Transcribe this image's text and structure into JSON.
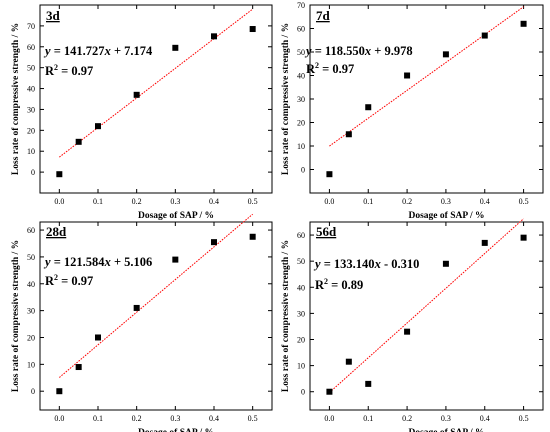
{
  "figure": {
    "colors": {
      "points": "#000000",
      "fit_line": "#ff0000",
      "axes": "#000000"
    }
  },
  "chart_data": [
    {
      "type": "scatter",
      "title": "3d",
      "xlabel": "Dosage of SAP / %",
      "ylabel": "Loss rate of compressive strength / %",
      "xlim": [
        -0.05,
        0.55
      ],
      "ylim": [
        -10,
        80
      ],
      "x_ticks": [
        "0.0",
        "0.1",
        "0.2",
        "0.3",
        "0.4",
        "0.5"
      ],
      "y_ticks": [
        "0",
        "10",
        "20",
        "30",
        "40",
        "50",
        "60",
        "70"
      ],
      "points": [
        {
          "x": 0.0,
          "y": -1
        },
        {
          "x": 0.05,
          "y": 14.5
        },
        {
          "x": 0.1,
          "y": 22
        },
        {
          "x": 0.2,
          "y": 37
        },
        {
          "x": 0.3,
          "y": 59.5
        },
        {
          "x": 0.4,
          "y": 65
        },
        {
          "x": 0.5,
          "y": 68.5
        }
      ],
      "fit": {
        "slope": 141.727,
        "intercept": 7.174,
        "x_range": [
          0.0,
          0.5
        ]
      },
      "equation": {
        "y": "y",
        "rhs": "= 141.727",
        "x": "x",
        "tail": "+ 7.174"
      },
      "r2": {
        "R": "R",
        "exp": "2",
        "value": "= 0.97"
      },
      "grid": false,
      "legend": "none"
    },
    {
      "type": "scatter",
      "title": "7d",
      "xlabel": "Dosage of SAP / %",
      "ylabel": "Loss rate of compressive strength / %",
      "xlim": [
        -0.05,
        0.55
      ],
      "ylim": [
        -10,
        70
      ],
      "x_ticks": [
        "0.0",
        "0.1",
        "0.2",
        "0.3",
        "0.4",
        "0.5"
      ],
      "y_ticks": [
        "0",
        "10",
        "20",
        "30",
        "40",
        "50",
        "60",
        "70"
      ],
      "points": [
        {
          "x": 0.0,
          "y": -2
        },
        {
          "x": 0.05,
          "y": 15
        },
        {
          "x": 0.1,
          "y": 26.5
        },
        {
          "x": 0.2,
          "y": 40
        },
        {
          "x": 0.3,
          "y": 49
        },
        {
          "x": 0.4,
          "y": 57
        },
        {
          "x": 0.5,
          "y": 62
        }
      ],
      "fit": {
        "slope": 118.55,
        "intercept": 9.978,
        "x_range": [
          0.0,
          0.5
        ]
      },
      "equation": {
        "y": "y",
        "rhs": "= 118.550",
        "x": "x",
        "tail": "+ 9.978"
      },
      "r2": {
        "R": "R",
        "exp": "2",
        "value": "= 0.97"
      },
      "grid": false,
      "legend": "none"
    },
    {
      "type": "scatter",
      "title": "28d",
      "xlabel": "Dosage of SAP / %",
      "ylabel": "Loss rate of compressive strength / %",
      "xlim": [
        -0.05,
        0.55
      ],
      "ylim": [
        -7,
        63
      ],
      "x_ticks": [
        "0.0",
        "0.1",
        "0.2",
        "0.3",
        "0.4",
        "0.5"
      ],
      "y_ticks": [
        "0",
        "10",
        "20",
        "30",
        "40",
        "50",
        "60"
      ],
      "points": [
        {
          "x": 0.0,
          "y": 0
        },
        {
          "x": 0.05,
          "y": 9
        },
        {
          "x": 0.1,
          "y": 20
        },
        {
          "x": 0.2,
          "y": 31
        },
        {
          "x": 0.3,
          "y": 49
        },
        {
          "x": 0.4,
          "y": 55.5
        },
        {
          "x": 0.5,
          "y": 57.5
        }
      ],
      "fit": {
        "slope": 121.584,
        "intercept": 5.106,
        "x_range": [
          0.0,
          0.5
        ]
      },
      "equation": {
        "y": "y",
        "rhs": "= 121.584",
        "x": "x",
        "tail": "+ 5.106"
      },
      "r2": {
        "R": "R",
        "exp": "2",
        "value": "= 0.97"
      },
      "grid": false,
      "legend": "none"
    },
    {
      "type": "scatter",
      "title": "56d",
      "xlabel": "Dosage of SAP / %",
      "ylabel": "Loss rate of compressive strength / %",
      "xlim": [
        -0.05,
        0.55
      ],
      "ylim": [
        -7,
        65
      ],
      "x_ticks": [
        "0.0",
        "0.1",
        "0.2",
        "0.3",
        "0.4",
        "0.5"
      ],
      "y_ticks": [
        "0",
        "10",
        "20",
        "30",
        "40",
        "50",
        "60"
      ],
      "points": [
        {
          "x": 0.0,
          "y": 0
        },
        {
          "x": 0.05,
          "y": 11.5
        },
        {
          "x": 0.1,
          "y": 3
        },
        {
          "x": 0.2,
          "y": 23
        },
        {
          "x": 0.3,
          "y": 49
        },
        {
          "x": 0.4,
          "y": 57
        },
        {
          "x": 0.5,
          "y": 59
        }
      ],
      "fit": {
        "slope": 133.14,
        "intercept": -0.31,
        "x_range": [
          0.0,
          0.5
        ]
      },
      "equation": {
        "y": "y",
        "rhs": "= 133.140",
        "x": "x",
        "tail": "- 0.310"
      },
      "r2": {
        "R": "R",
        "exp": "2",
        "value": "= 0.89"
      },
      "grid": false,
      "legend": "none"
    }
  ]
}
